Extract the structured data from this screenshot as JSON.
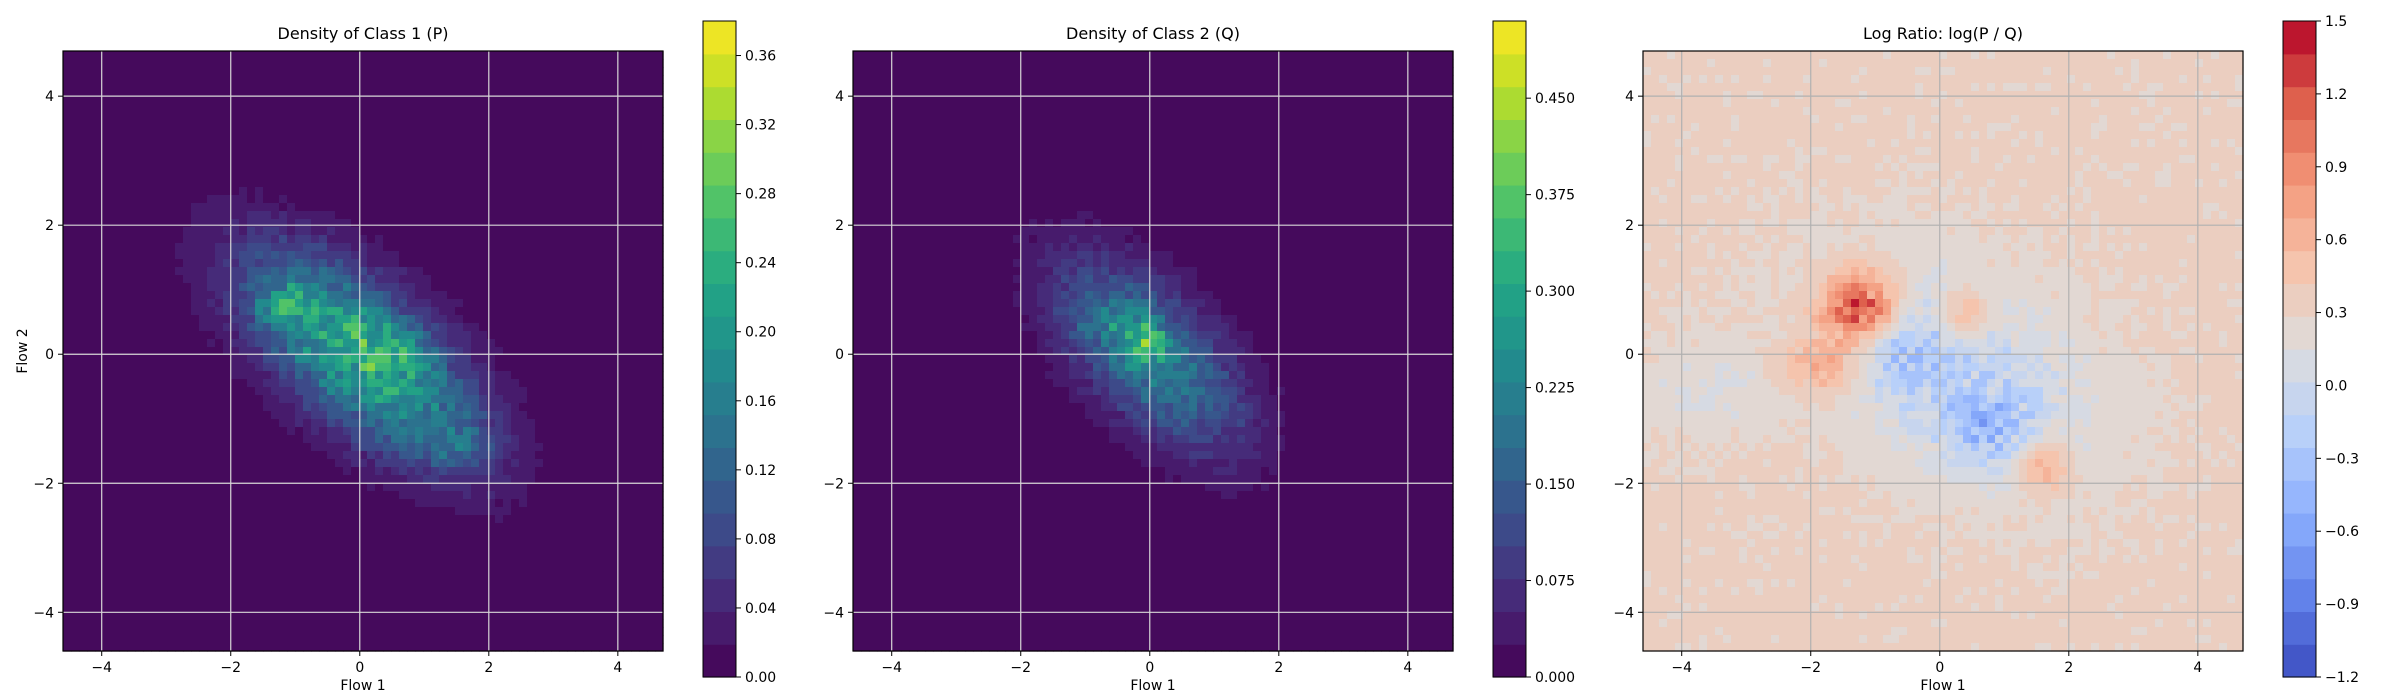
{
  "chart_data": [
    {
      "type": "heatmap",
      "title": "Density of Class 1 (P)",
      "xlabel": "Flow 1",
      "ylabel": "Flow 2",
      "xlim": [
        -4.6,
        4.7
      ],
      "ylim": [
        -4.6,
        4.7
      ],
      "xticks": [
        -4,
        -2,
        0,
        2,
        4
      ],
      "yticks": [
        -4,
        -2,
        0,
        2,
        4
      ],
      "grid": true,
      "colormap": "viridis",
      "colorbar": {
        "min": 0.0,
        "max": 0.38,
        "ticks": [
          0.0,
          0.04,
          0.08,
          0.12,
          0.16,
          0.2,
          0.24,
          0.28,
          0.32,
          0.36
        ],
        "tick_labels": [
          "0.00",
          "0.04",
          "0.08",
          "0.12",
          "0.16",
          "0.20",
          "0.24",
          "0.28",
          "0.32",
          "0.36"
        ]
      },
      "blobs": [
        {
          "cx": 0.0,
          "cy": 0.0,
          "sx": 1.5,
          "sy": 0.7,
          "angle_deg": -40,
          "peak": 0.24
        },
        {
          "cx": -1.2,
          "cy": 0.8,
          "sx": 0.3,
          "sy": 0.2,
          "angle_deg": 0,
          "peak": 0.08
        },
        {
          "cx": 0.6,
          "cy": 0.1,
          "sx": 0.3,
          "sy": 0.25,
          "angle_deg": 0,
          "peak": 0.06
        },
        {
          "cx": 1.5,
          "cy": -1.4,
          "sx": 0.4,
          "sy": 0.3,
          "angle_deg": 0,
          "peak": 0.05
        }
      ]
    },
    {
      "type": "heatmap",
      "title": "Density of Class 2 (Q)",
      "xlabel": "Flow 1",
      "ylabel": "",
      "xlim": [
        -4.6,
        4.7
      ],
      "ylim": [
        -4.6,
        4.7
      ],
      "xticks": [
        -4,
        -2,
        0,
        2,
        4
      ],
      "yticks": [
        -4,
        -2,
        0,
        2,
        4
      ],
      "grid": true,
      "colormap": "viridis",
      "colorbar": {
        "min": 0.0,
        "max": 0.51,
        "ticks": [
          0.0,
          0.075,
          0.15,
          0.225,
          0.3,
          0.375,
          0.45
        ],
        "tick_labels": [
          "0.000",
          "0.075",
          "0.150",
          "0.225",
          "0.300",
          "0.375",
          "0.450"
        ]
      },
      "blobs": [
        {
          "cx": 0.0,
          "cy": 0.0,
          "sx": 1.3,
          "sy": 0.65,
          "angle_deg": -45,
          "peak": 0.22
        },
        {
          "cx": -0.1,
          "cy": 0.2,
          "sx": 0.25,
          "sy": 0.25,
          "angle_deg": 0,
          "peak": 0.15
        },
        {
          "cx": -0.7,
          "cy": 0.5,
          "sx": 0.3,
          "sy": 0.2,
          "angle_deg": 0,
          "peak": 0.06
        }
      ]
    },
    {
      "type": "heatmap",
      "title": "Log Ratio: log(P / Q)",
      "xlabel": "Flow 1",
      "ylabel": "",
      "xlim": [
        -4.6,
        4.7
      ],
      "ylim": [
        -4.6,
        4.7
      ],
      "xticks": [
        -4,
        -2,
        0,
        2,
        4
      ],
      "yticks": [
        -4,
        -2,
        0,
        2,
        4
      ],
      "grid": true,
      "colormap": "coolwarm",
      "background_value": 0.3,
      "colorbar": {
        "min": -1.2,
        "max": 1.5,
        "ticks": [
          -1.2,
          -0.9,
          -0.6,
          -0.3,
          0.0,
          0.3,
          0.6,
          0.9,
          1.2,
          1.5
        ],
        "tick_labels": [
          "−1.2",
          "−0.9",
          "−0.6",
          "−0.3",
          "0.0",
          "0.3",
          "0.6",
          "0.9",
          "1.2",
          "1.5"
        ]
      },
      "blobs": [
        {
          "cx": 0.3,
          "cy": -0.3,
          "sx": 1.4,
          "sy": 0.9,
          "angle_deg": -30,
          "peak": -0.45
        },
        {
          "cx": 0.8,
          "cy": -1.2,
          "sx": 0.5,
          "sy": 0.4,
          "angle_deg": 0,
          "peak": -0.4
        },
        {
          "cx": -0.7,
          "cy": 0.2,
          "sx": 0.4,
          "sy": 0.5,
          "angle_deg": 0,
          "peak": -0.35
        },
        {
          "cx": -1.2,
          "cy": 0.7,
          "sx": 0.45,
          "sy": 0.4,
          "angle_deg": 0,
          "peak": 1.1
        },
        {
          "cx": -1.8,
          "cy": -0.2,
          "sx": 0.5,
          "sy": 0.3,
          "angle_deg": 0,
          "peak": 0.4
        },
        {
          "cx": 0.4,
          "cy": 0.6,
          "sx": 0.3,
          "sy": 0.3,
          "angle_deg": 0,
          "peak": 0.45
        },
        {
          "cx": 1.6,
          "cy": -1.7,
          "sx": 0.3,
          "sy": 0.3,
          "angle_deg": 0,
          "peak": 0.5
        },
        {
          "cx": -3.5,
          "cy": -0.5,
          "sx": 0.8,
          "sy": 0.5,
          "angle_deg": 0,
          "peak": -0.15
        }
      ]
    }
  ]
}
